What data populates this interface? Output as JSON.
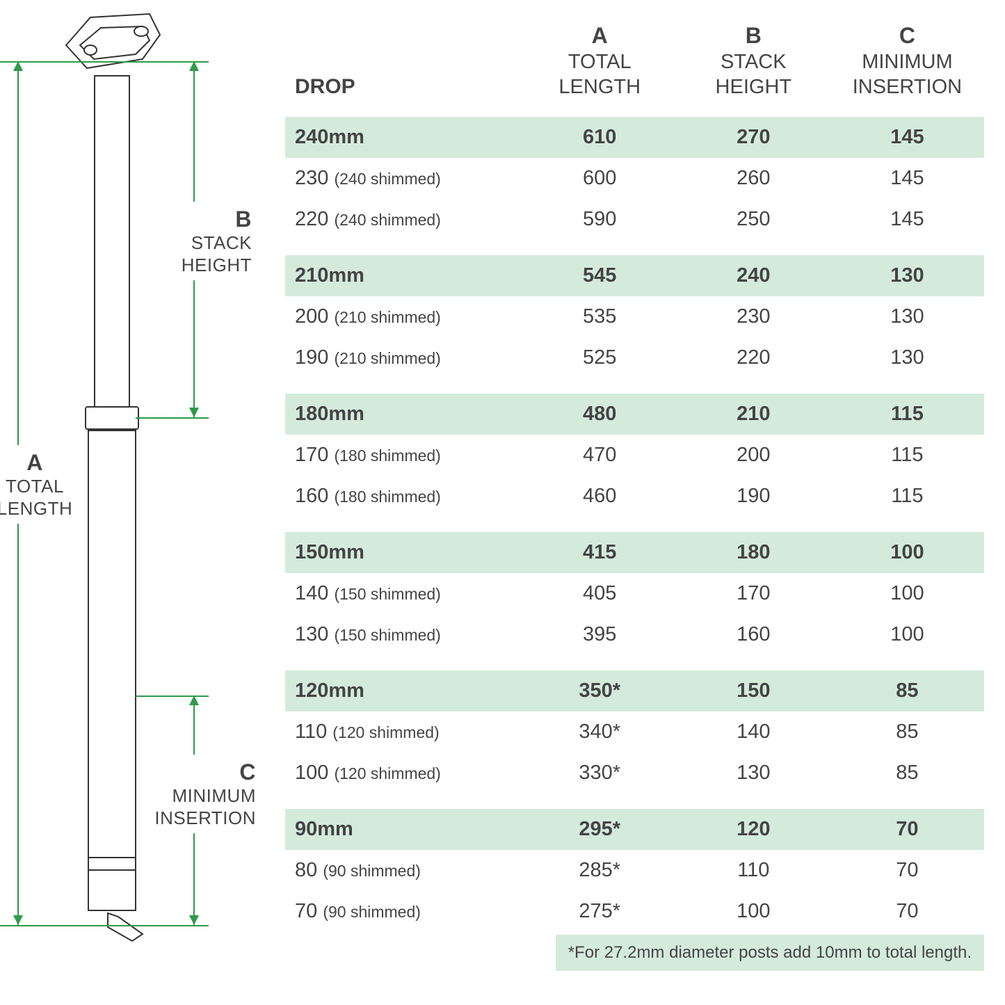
{
  "diagram": {
    "labels": {
      "A": {
        "letter": "A",
        "line1": "TOTAL",
        "line2": "LENGTH"
      },
      "B": {
        "letter": "B",
        "line1": "STACK",
        "line2": "HEIGHT"
      },
      "C": {
        "letter": "C",
        "line1": "MINIMUM",
        "line2": "INSERTION"
      }
    },
    "colors": {
      "dim": "#2e9a4a",
      "text": "#444444",
      "highlight": "#d4ebdc"
    }
  },
  "table": {
    "headers": {
      "drop": "DROP",
      "A": {
        "letter": "A",
        "l1": "TOTAL",
        "l2": "LENGTH"
      },
      "B": {
        "letter": "B",
        "l1": "STACK",
        "l2": "HEIGHT"
      },
      "C": {
        "letter": "C",
        "l1": "MINIMUM",
        "l2": "INSERTION"
      }
    },
    "groups": [
      {
        "hl": {
          "drop": "240mm",
          "A": "610",
          "B": "270",
          "C": "145"
        },
        "rows": [
          {
            "drop": "230",
            "note": "(240 shimmed)",
            "A": "600",
            "B": "260",
            "C": "145"
          },
          {
            "drop": "220",
            "note": "(240 shimmed)",
            "A": "590",
            "B": "250",
            "C": "145"
          }
        ]
      },
      {
        "hl": {
          "drop": "210mm",
          "A": "545",
          "B": "240",
          "C": "130"
        },
        "rows": [
          {
            "drop": "200",
            "note": "(210 shimmed)",
            "A": "535",
            "B": "230",
            "C": "130"
          },
          {
            "drop": "190",
            "note": "(210 shimmed)",
            "A": "525",
            "B": "220",
            "C": "130"
          }
        ]
      },
      {
        "hl": {
          "drop": "180mm",
          "A": "480",
          "B": "210",
          "C": "115"
        },
        "rows": [
          {
            "drop": "170",
            "note": "(180 shimmed)",
            "A": "470",
            "B": "200",
            "C": "115"
          },
          {
            "drop": "160",
            "note": "(180 shimmed)",
            "A": "460",
            "B": "190",
            "C": "115"
          }
        ]
      },
      {
        "hl": {
          "drop": "150mm",
          "A": "415",
          "B": "180",
          "C": "100"
        },
        "rows": [
          {
            "drop": "140",
            "note": "(150 shimmed)",
            "A": "405",
            "B": "170",
            "C": "100"
          },
          {
            "drop": "130",
            "note": "(150 shimmed)",
            "A": "395",
            "B": "160",
            "C": "100"
          }
        ]
      },
      {
        "hl": {
          "drop": "120mm",
          "A": "350*",
          "B": "150",
          "C": "85"
        },
        "rows": [
          {
            "drop": "110",
            "note": "(120 shimmed)",
            "A": "340*",
            "B": "140",
            "C": "85"
          },
          {
            "drop": "100",
            "note": "(120 shimmed)",
            "A": "330*",
            "B": "130",
            "C": "85"
          }
        ]
      },
      {
        "hl": {
          "drop": "90mm",
          "A": "295*",
          "B": "120",
          "C": "70"
        },
        "rows": [
          {
            "drop": "80",
            "note": "(90 shimmed)",
            "A": "285*",
            "B": "110",
            "C": "70"
          },
          {
            "drop": "70",
            "note": "(90 shimmed)",
            "A": "275*",
            "B": "100",
            "C": "70"
          }
        ]
      }
    ],
    "footnote": "*For 27.2mm diameter posts add 10mm to total length."
  }
}
